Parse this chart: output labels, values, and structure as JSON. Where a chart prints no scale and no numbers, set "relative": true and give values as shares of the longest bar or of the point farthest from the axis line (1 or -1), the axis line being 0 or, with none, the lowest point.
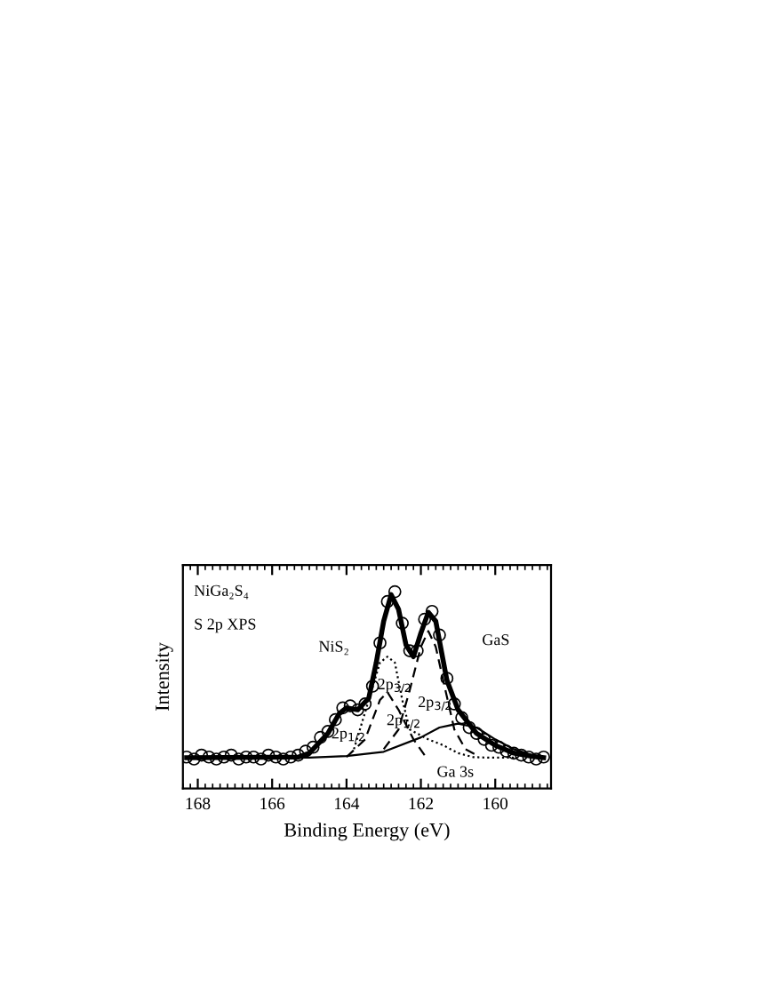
{
  "chart_data": {
    "type": "line",
    "xlabel": "Binding Energy (eV)",
    "ylabel": "Intensity",
    "relative": true,
    "xlim": [
      168.4,
      158.5
    ],
    "xticks": [
      168,
      166,
      164,
      162,
      160
    ],
    "grid": false,
    "annotations": [
      "NiGa₂S₄",
      "S 2p XPS",
      "NiS₂",
      "GaS",
      "2p$_{3/2}$",
      "2p$_{3/2}$",
      "2p$_{1/2}$",
      "2p$_{1/2}$",
      "Ga 3s"
    ],
    "series": [
      {
        "type": "scatter",
        "marker": "circle",
        "color": "#000000",
        "x": [
          168.3,
          168.1,
          167.9,
          167.7,
          167.5,
          167.3,
          167.1,
          166.9,
          166.7,
          166.5,
          166.3,
          166.1,
          165.9,
          165.7,
          165.5,
          165.3,
          165.1,
          164.9,
          164.7,
          164.5,
          164.3,
          164.1,
          163.9,
          163.7,
          163.5,
          163.3,
          163.1,
          162.9,
          162.7,
          162.5,
          162.3,
          162.1,
          161.9,
          161.7,
          161.5,
          161.3,
          161.1,
          160.9,
          160.7,
          160.5,
          160.3,
          160.1,
          159.9,
          159.7,
          159.5,
          159.3,
          159.1,
          158.9,
          158.7
        ],
        "values": [
          0.16,
          0.15,
          0.17,
          0.16,
          0.15,
          0.16,
          0.17,
          0.15,
          0.16,
          0.16,
          0.15,
          0.17,
          0.16,
          0.15,
          0.16,
          0.17,
          0.19,
          0.21,
          0.26,
          0.29,
          0.35,
          0.41,
          0.42,
          0.4,
          0.43,
          0.52,
          0.74,
          0.95,
          1.0,
          0.84,
          0.7,
          0.7,
          0.86,
          0.9,
          0.78,
          0.56,
          0.43,
          0.36,
          0.31,
          0.28,
          0.25,
          0.22,
          0.21,
          0.19,
          0.18,
          0.17,
          0.16,
          0.15,
          0.16
        ]
      },
      {
        "line_style": "solid",
        "color": "#000000",
        "x": [
          168.3,
          165.3,
          165.0,
          164.5,
          164.2,
          164.0,
          163.7,
          163.4,
          163.2,
          163.0,
          162.8,
          162.6,
          162.4,
          162.2,
          162.0,
          161.8,
          161.6,
          161.4,
          161.3,
          161.0,
          160.5,
          160.0,
          159.5,
          159.0,
          158.7
        ],
        "values": [
          0.157,
          0.16,
          0.18,
          0.28,
          0.38,
          0.41,
          0.4,
          0.46,
          0.64,
          0.85,
          0.985,
          0.91,
          0.73,
          0.67,
          0.79,
          0.895,
          0.85,
          0.65,
          0.55,
          0.4,
          0.28,
          0.22,
          0.18,
          0.163,
          0.157
        ]
      },
      {
        "line_style": "solid",
        "color": "#000000",
        "x": [
          168.3,
          165.0,
          164.0,
          163.0,
          162.0,
          161.5,
          161.0,
          160.5,
          160.0,
          159.5,
          159.0,
          158.7
        ],
        "values": [
          0.157,
          0.157,
          0.165,
          0.187,
          0.26,
          0.31,
          0.33,
          0.31,
          0.25,
          0.2,
          0.17,
          0.16
        ]
      },
      {
        "line_style": "dotted",
        "color": "#000000",
        "x": [
          163.8,
          163.4,
          163.1,
          162.9,
          162.7,
          162.5,
          162.3,
          162.1,
          161.8,
          161.4,
          161.0,
          160.6,
          160.2,
          159.5
        ],
        "values": [
          0.2,
          0.45,
          0.64,
          0.67,
          0.64,
          0.45,
          0.3,
          0.28,
          0.25,
          0.22,
          0.18,
          0.16,
          0.157,
          0.157
        ]
      },
      {
        "line_style": "dashed",
        "color": "#000000",
        "x": [
          163.0,
          162.6,
          162.3,
          162.0,
          161.8,
          161.6,
          161.4,
          161.1,
          160.8,
          160.5
        ],
        "values": [
          0.2,
          0.3,
          0.5,
          0.72,
          0.8,
          0.72,
          0.55,
          0.3,
          0.2,
          0.17
        ]
      },
      {
        "line_style": "dashed",
        "color": "#000000",
        "x": [
          164.0,
          163.5,
          163.1,
          162.9,
          162.6,
          162.2,
          161.9
        ],
        "values": [
          0.16,
          0.25,
          0.45,
          0.49,
          0.4,
          0.25,
          0.17
        ]
      }
    ]
  }
}
